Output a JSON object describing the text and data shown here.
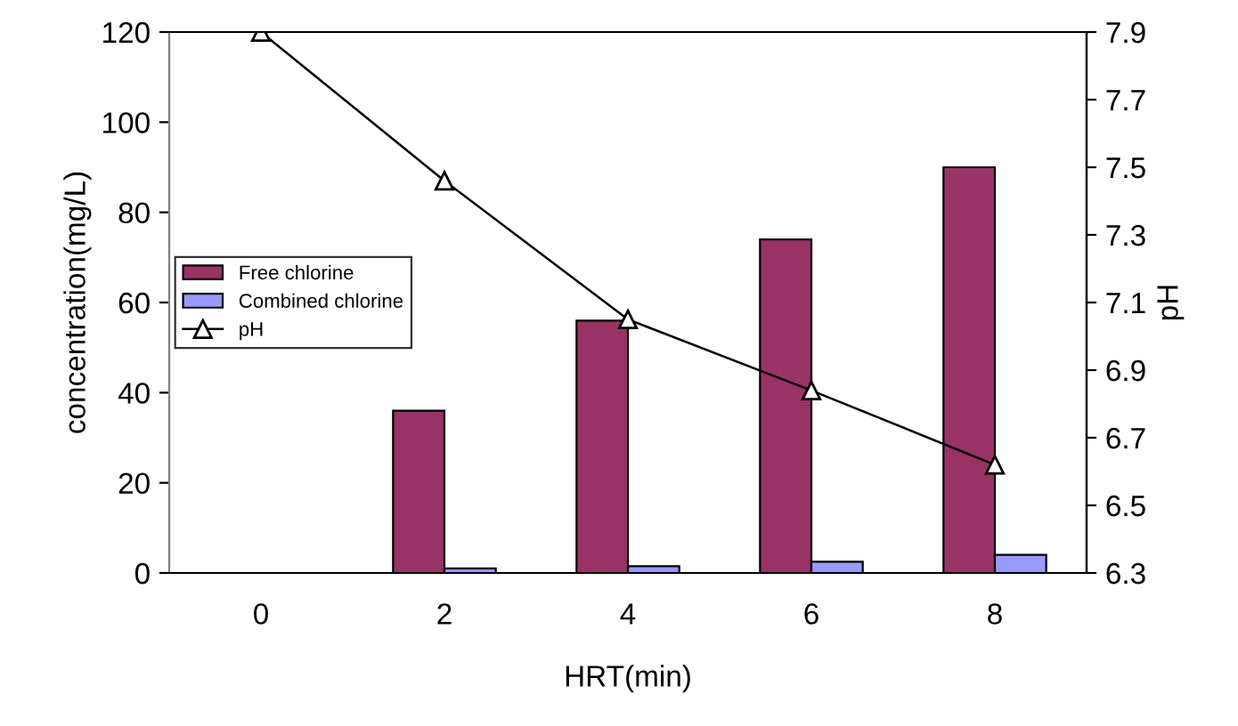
{
  "chart_data": {
    "type": "bar",
    "xlabel": "HRT(min)",
    "ylabel": "concentration(mg/L)",
    "y2label": "pH",
    "categories": [
      "0",
      "2",
      "4",
      "6",
      "8"
    ],
    "series": [
      {
        "name": "Free chlorine",
        "color": "#993366",
        "values": [
          null,
          36,
          56,
          74,
          90
        ]
      },
      {
        "name": "Combined chlorine",
        "color": "#9999ff",
        "values": [
          null,
          1,
          1.5,
          2.5,
          4
        ]
      },
      {
        "name": "pH",
        "type": "line",
        "axis": "y2",
        "color": "#000000",
        "marker": "triangle",
        "values": [
          7.9,
          7.46,
          7.05,
          6.84,
          6.62
        ]
      }
    ],
    "ylim": [
      0,
      120
    ],
    "yticks": [
      0,
      20,
      40,
      60,
      80,
      100,
      120
    ],
    "y2lim": [
      6.3,
      7.9
    ],
    "y2ticks": [
      6.3,
      6.5,
      6.7,
      6.9,
      7.1,
      7.3,
      7.5,
      7.7,
      7.9
    ],
    "legend": "center left",
    "grid": false
  }
}
